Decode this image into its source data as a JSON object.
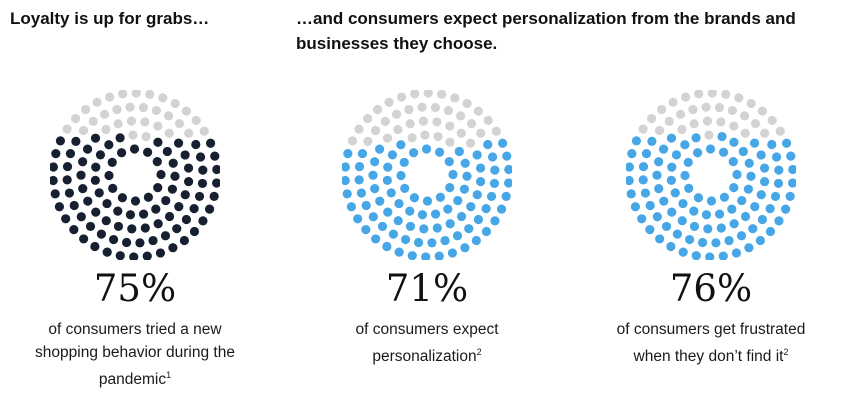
{
  "headings": {
    "left": "Loyalty is up for grabs…",
    "right": "…and consumers expect personalization from the brands and businesses they choose."
  },
  "colors": {
    "empty_dot": "#d3d3d3",
    "dark_dot": "#172030",
    "blue_dot": "#47a6e6"
  },
  "chart_data": [
    {
      "type": "dot-donut",
      "value": 75,
      "label": "75%",
      "caption": "of consumers tried a new shopping behavior during the pandemic",
      "footnote": "1",
      "fill_color": "#172030"
    },
    {
      "type": "dot-donut",
      "value": 71,
      "label": "71%",
      "caption": "of consumers expect personalization",
      "footnote": "2",
      "fill_color": "#47a6e6"
    },
    {
      "type": "dot-donut",
      "value": 76,
      "label": "76%",
      "caption": "of consumers get frustrated when they don’t find it",
      "footnote": "2",
      "fill_color": "#47a6e6"
    }
  ]
}
